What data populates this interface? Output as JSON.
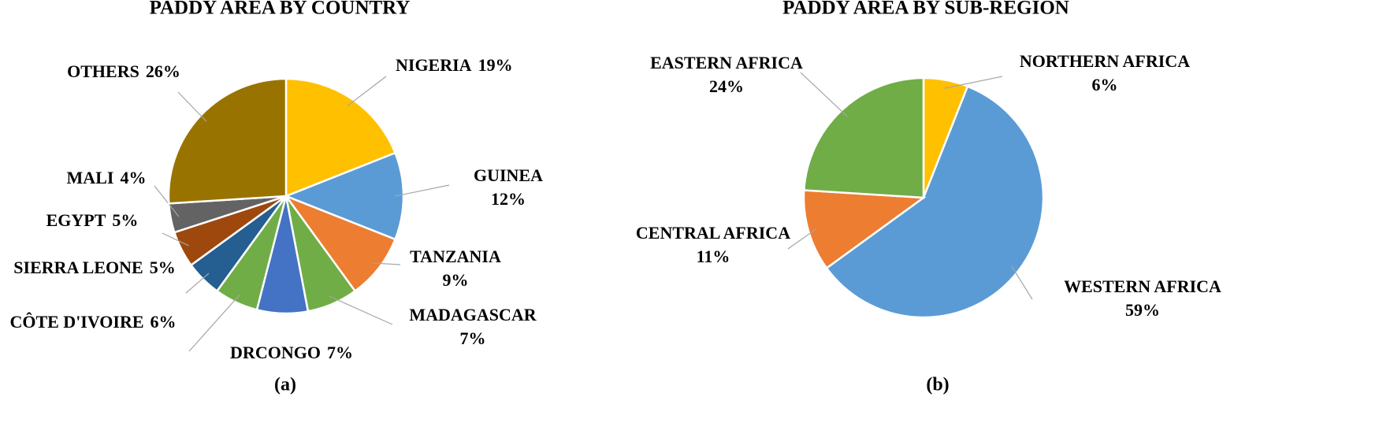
{
  "chart_data": [
    {
      "type": "pie",
      "title": "PADDY AREA BY COUNTRY",
      "caption": "(a)",
      "categories": [
        "NIGERIA",
        "GUINEA",
        "TANZANIA",
        "MADAGASCAR",
        "DRCONGO",
        "CÔTE D'IVOIRE",
        "SIERRA LEONE",
        "EGYPT",
        "MALI",
        "OTHERS"
      ],
      "values": [
        19,
        12,
        9,
        7,
        7,
        6,
        5,
        5,
        4,
        26
      ],
      "value_labels": [
        "19%",
        "12%",
        "9%",
        "7%",
        "7%",
        "6%",
        "5%",
        "5%",
        "4%",
        "26%"
      ],
      "colors": [
        "#FFC000",
        "#5B9BD5",
        "#ED7D31",
        "#70AD47",
        "#4472C4",
        "#70AD47",
        "#255E91",
        "#9E480E",
        "#636363",
        "#997300"
      ]
    },
    {
      "type": "pie",
      "title": "PADDY AREA BY SUB-REGION",
      "caption": "(b)",
      "categories": [
        "NORTHERN AFRICA",
        "WESTERN AFRICA",
        "CENTRAL AFRICA",
        "EASTERN AFRICA"
      ],
      "values": [
        6,
        59,
        11,
        24
      ],
      "value_labels": [
        "6%",
        "59%",
        "11%",
        "24%"
      ],
      "colors": [
        "#FFC000",
        "#5B9BD5",
        "#ED7D31",
        "#70AD47"
      ]
    }
  ]
}
